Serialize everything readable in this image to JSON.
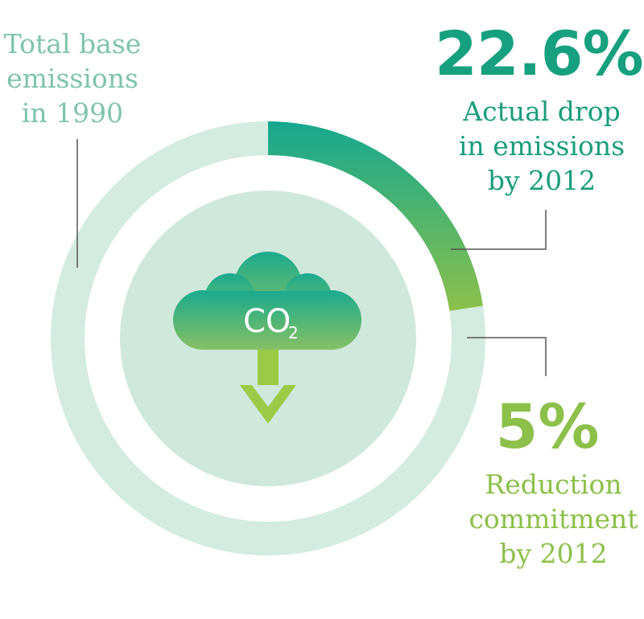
{
  "labels": {
    "total_base": "Total base\nemissions\nin 1990",
    "actual_drop": "Actual drop\nin emissions\nby 2012",
    "reduction_commitment": "Reduction\ncommitment\nby 2012"
  },
  "figures": {
    "actual_drop_pct": "22.6%",
    "reduction_commitment_pct": "5%"
  },
  "icon": {
    "name": "cloud-co2-down-arrow-icon",
    "text": "CO",
    "subscript": "2"
  },
  "ring": {
    "actual_drop_fraction": 0.226,
    "commitment_fraction": 0.05
  },
  "colors": {
    "ring_base": "#d3ebe0",
    "inner_disc": "#cfe8dc",
    "actual_start": "#15a88f",
    "actual_end": "#8cc04a",
    "commitment": "#8cc04a",
    "leader_line": "#555555"
  }
}
